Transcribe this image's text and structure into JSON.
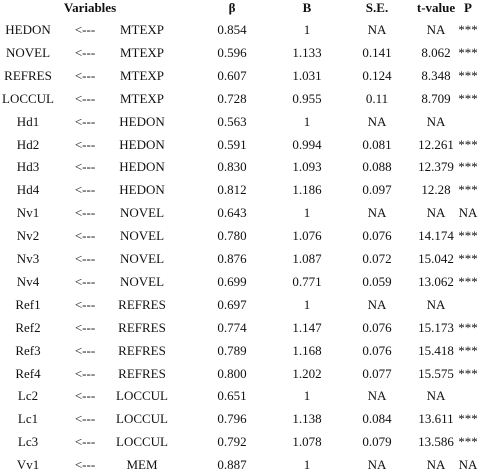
{
  "table": {
    "header": [
      "Variables",
      "β",
      "B",
      "S.E.",
      "t-value",
      "P"
    ],
    "rows": [
      [
        "HEDON",
        "<---",
        "MTEXP",
        "0.854",
        "1",
        "NA",
        "NA",
        "***"
      ],
      [
        "NOVEL",
        "<---",
        "MTEXP",
        "0.596",
        "1.133",
        "0.141",
        "8.062",
        "***"
      ],
      [
        "REFRES",
        "<---",
        "MTEXP",
        "0.607",
        "1.031",
        "0.124",
        "8.348",
        "***"
      ],
      [
        "LOCCUL",
        "<---",
        "MTEXP",
        "0.728",
        "0.955",
        "0.11",
        "8.709",
        "***"
      ],
      [
        "Hd1",
        "<---",
        "HEDON",
        "0.563",
        "1",
        "NA",
        "NA",
        null
      ],
      [
        "Hd2",
        "<---",
        "HEDON",
        "0.591",
        "0.994",
        "0.081",
        "12.261",
        "***"
      ],
      [
        "Hd3",
        "<---",
        "HEDON",
        "0.830",
        "1.093",
        "0.088",
        "12.379",
        "***"
      ],
      [
        "Hd4",
        "<---",
        "HEDON",
        "0.812",
        "1.186",
        "0.097",
        "12.28",
        "***"
      ],
      [
        "Nv1",
        "<---",
        "NOVEL",
        "0.643",
        "1",
        "NA",
        "NA",
        "NA"
      ],
      [
        "Nv2",
        "<---",
        "NOVEL",
        "0.780",
        "1.076",
        "0.076",
        "14.174",
        "***"
      ],
      [
        "Nv3",
        "<---",
        "NOVEL",
        "0.876",
        "1.087",
        "0.072",
        "15.042",
        "***"
      ],
      [
        "Nv4",
        "<---",
        "NOVEL",
        "0.699",
        "0.771",
        "0.059",
        "13.062",
        "***"
      ],
      [
        "Ref1",
        "<---",
        "REFRES",
        "0.697",
        "1",
        "NA",
        "NA",
        null
      ],
      [
        "Ref2",
        "<---",
        "REFRES",
        "0.774",
        "1.147",
        "0.076",
        "15.173",
        "***"
      ],
      [
        "Ref3",
        "<---",
        "REFRES",
        "0.789",
        "1.168",
        "0.076",
        "15.418",
        "***"
      ],
      [
        "Ref4",
        "<---",
        "REFRES",
        "0.800",
        "1.202",
        "0.077",
        "15.575",
        "***"
      ],
      [
        "Lc2",
        "<---",
        "LOCCUL",
        "0.651",
        "1",
        "NA",
        "NA",
        null
      ],
      [
        "Lc1",
        "<---",
        "LOCCUL",
        "0.796",
        "1.138",
        "0.084",
        "13.611",
        "***"
      ],
      [
        "Lc3",
        "<---",
        "LOCCUL",
        "0.792",
        "1.078",
        "0.079",
        "13.586",
        "***"
      ],
      [
        "Vv1",
        "<---",
        "MEM",
        "0.887",
        "1",
        "NA",
        "NA",
        "NA"
      ]
    ]
  }
}
